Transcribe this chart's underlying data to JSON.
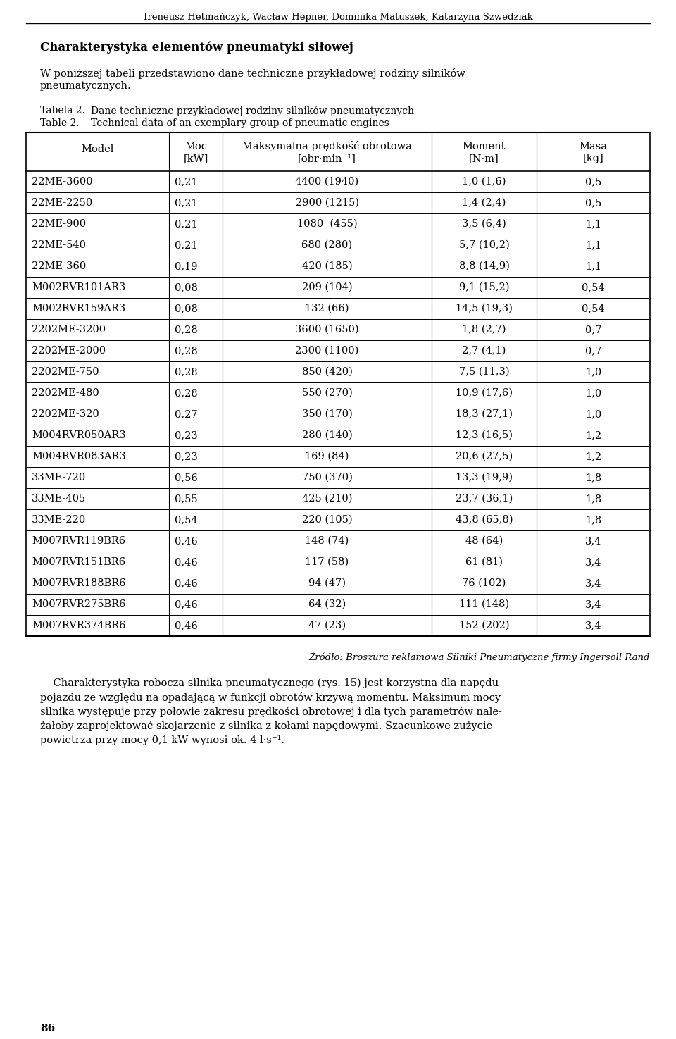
{
  "header_text": "Ireneusz Hetmańczyk, Wacław Hepner, Dominika Matuszek, Katarzyna Szwedziak",
  "title_bold": "Charakterystyka elementów pneumatyki siłowej",
  "intro_line1": "W poniższej tabeli przedstawiono dane techniczne przykładowej rodziny silników",
  "intro_line2": "pneumatycznych.",
  "table_label_pl": "Tabela 2.",
  "table_label_pl2": "Dane techniczne przykładowej rodziny silników pneumatycznych",
  "table_label_en": "Table 2.",
  "table_label_en2": "Technical data of an exemplary group of pneumatic engines",
  "col_headers_line1": [
    "Model",
    "Moc",
    "Maksymalna prędkość obrotowa",
    "Moment",
    "Masa"
  ],
  "col_headers_line2": [
    "",
    "[kW]",
    "[obr·min⁻¹]",
    "[N·m]",
    "[kg]"
  ],
  "table_data": [
    [
      "22ME-3600",
      "0,21",
      "4400 (1940)",
      "1,0 (1,6)",
      "0,5"
    ],
    [
      "22ME-2250",
      "0,21",
      "2900 (1215)",
      "1,4 (2,4)",
      "0,5"
    ],
    [
      "22ME-900",
      "0,21",
      "1080  (455)",
      "3,5 (6,4)",
      "1,1"
    ],
    [
      "22ME-540",
      "0,21",
      "680 (280)",
      "5,7 (10,2)",
      "1,1"
    ],
    [
      "22ME-360",
      "0,19",
      "420 (185)",
      "8,8 (14,9)",
      "1,1"
    ],
    [
      "M002RVR101AR3",
      "0,08",
      "209 (104)",
      "9,1 (15,2)",
      "0,54"
    ],
    [
      "M002RVR159AR3",
      "0,08",
      "132 (66)",
      "14,5 (19,3)",
      "0,54"
    ],
    [
      "2202ME-3200",
      "0,28",
      "3600 (1650)",
      "1,8 (2,7)",
      "0,7"
    ],
    [
      "2202ME-2000",
      "0,28",
      "2300 (1100)",
      "2,7 (4,1)",
      "0,7"
    ],
    [
      "2202ME-750",
      "0,28",
      "850 (420)",
      "7,5 (11,3)",
      "1,0"
    ],
    [
      "2202ME-480",
      "0,28",
      "550 (270)",
      "10,9 (17,6)",
      "1,0"
    ],
    [
      "2202ME-320",
      "0,27",
      "350 (170)",
      "18,3 (27,1)",
      "1,0"
    ],
    [
      "M004RVR050AR3",
      "0,23",
      "280 (140)",
      "12,3 (16,5)",
      "1,2"
    ],
    [
      "M004RVR083AR3",
      "0,23",
      "169 (84)",
      "20,6 (27,5)",
      "1,2"
    ],
    [
      "33ME-720",
      "0,56",
      "750 (370)",
      "13,3 (19,9)",
      "1,8"
    ],
    [
      "33ME-405",
      "0,55",
      "425 (210)",
      "23,7 (36,1)",
      "1,8"
    ],
    [
      "33ME-220",
      "0,54",
      "220 (105)",
      "43,8 (65,8)",
      "1,8"
    ],
    [
      "M007RVR119BR6",
      "0,46",
      "148 (74)",
      "48 (64)",
      "3,4"
    ],
    [
      "M007RVR151BR6",
      "0,46",
      "117 (58)",
      "61 (81)",
      "3,4"
    ],
    [
      "M007RVR188BR6",
      "0,46",
      "94 (47)",
      "76 (102)",
      "3,4"
    ],
    [
      "M007RVR275BR6",
      "0,46",
      "64 (32)",
      "111 (148)",
      "3,4"
    ],
    [
      "M007RVR374BR6",
      "0,46",
      "47 (23)",
      "152 (202)",
      "3,4"
    ]
  ],
  "source_text": "Źródło: Broszura reklamowa Silniki Pneumatyczne firmy Ingersoll Rand",
  "body_line1": "    Charakterystyka robocza silnika pneumatycznego (rys. 15) jest korzystna dla napędu",
  "body_line2": "pojazdu ze względu na opadającą w funkcji obrotów krzywą momentu. Maksimum mocy",
  "body_line3": "silnika występuje przy połowie zakresu prędkości obrotowej i dla tych parametrów nale-",
  "body_line4": "żałoby zaprojektować skojarzenie z silnika z kołami napędowymi. Szacunkowe zużycie",
  "body_line5": "powietrza przy mocy 0,1 kW wynosi ok. 4 l·s⁻¹.",
  "page_number": "86"
}
